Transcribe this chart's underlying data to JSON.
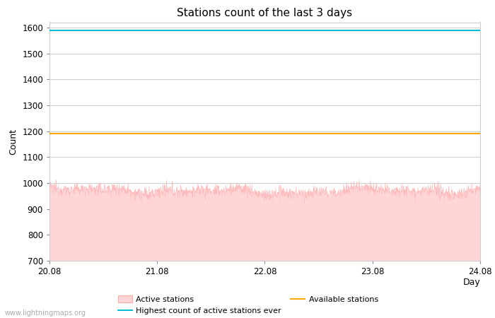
{
  "title": "Stations count of the last 3 days",
  "xlabel": "Day",
  "ylabel": "Count",
  "xlim": [
    0,
    288
  ],
  "ylim": [
    700,
    1620
  ],
  "yticks": [
    700,
    800,
    900,
    1000,
    1100,
    1200,
    1300,
    1400,
    1500,
    1600
  ],
  "xtick_positions": [
    0,
    72,
    144,
    216,
    288
  ],
  "xtick_labels": [
    "20.08",
    "21.08",
    "22.08",
    "23.08",
    "24.08"
  ],
  "highest_ever_value": 1590,
  "available_stations_value": 1190,
  "active_stations_mean": 970,
  "active_stations_color_fill": "#ffd5d5",
  "active_stations_color_line": "#ffbbbb",
  "highest_ever_color": "#00bcd4",
  "available_stations_color": "#ffa500",
  "background_color": "#ffffff",
  "grid_color": "#cccccc",
  "watermark": "www.lightningmaps.org",
  "n_points": 1440
}
